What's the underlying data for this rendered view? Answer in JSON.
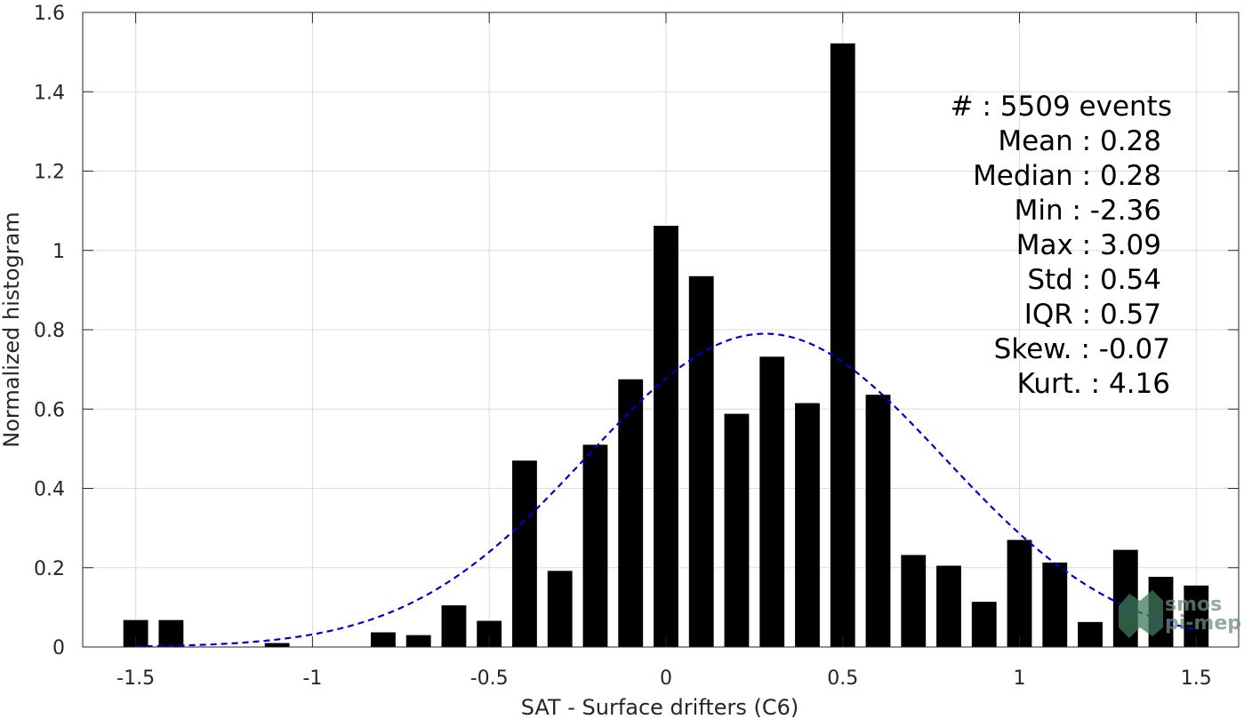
{
  "chart_data": {
    "type": "bar",
    "xlabel": "SAT - Surface drifters (C6)",
    "ylabel": "Normalized histogram",
    "xlim": [
      -1.65,
      1.62
    ],
    "ylim": [
      0,
      1.6
    ],
    "xticks": [
      -1.5,
      -1,
      -0.5,
      0,
      0.5,
      1,
      1.5
    ],
    "xtick_labels": [
      "-1.5",
      "-1",
      "-0.5",
      "0",
      "0.5",
      "1",
      "1.5"
    ],
    "yticks": [
      0,
      0.2,
      0.4,
      0.6,
      0.8,
      1,
      1.2,
      1.4,
      1.6
    ],
    "ytick_labels": [
      "0",
      "0.2",
      "0.4",
      "0.6",
      "0.8",
      "1",
      "1.2",
      "1.4",
      "1.6"
    ],
    "grid": true,
    "bar_color": "#000000",
    "bar_width": 0.07,
    "bars": {
      "x": [
        -1.5,
        -1.4,
        -1.1,
        -0.8,
        -0.7,
        -0.6,
        -0.5,
        -0.4,
        -0.3,
        -0.2,
        -0.1,
        0.0,
        0.1,
        0.2,
        0.3,
        0.4,
        0.5,
        0.6,
        0.7,
        0.8,
        0.9,
        1.0,
        1.1,
        1.2,
        1.3,
        1.4,
        1.5
      ],
      "values": [
        0.068,
        0.068,
        0.01,
        0.037,
        0.03,
        0.105,
        0.066,
        0.47,
        0.192,
        0.51,
        0.675,
        1.062,
        0.935,
        0.588,
        0.732,
        0.615,
        1.522,
        0.636,
        0.232,
        0.205,
        0.114,
        0.27,
        0.213,
        0.063,
        0.245,
        0.177,
        0.155
      ]
    },
    "fit": {
      "type": "normal",
      "mean": 0.28,
      "std": 0.505,
      "x_range": [
        -1.5,
        1.5
      ],
      "color": "#0000cc",
      "style": "dashed"
    },
    "stats": [
      {
        "label": "#  : 5509 events"
      },
      {
        "label": "Mean : 0.28"
      },
      {
        "label": "Median : 0.28"
      },
      {
        "label": "Min : -2.36"
      },
      {
        "label": "Max : 3.09"
      },
      {
        "label": "Std : 0.54"
      },
      {
        "label": "IQR : 0.57"
      },
      {
        "label": "Skew. : -0.07"
      },
      {
        "label": "Kurt. : 4.16"
      }
    ]
  },
  "watermark": {
    "line1": "smos",
    "line2": "pi-mep"
  }
}
